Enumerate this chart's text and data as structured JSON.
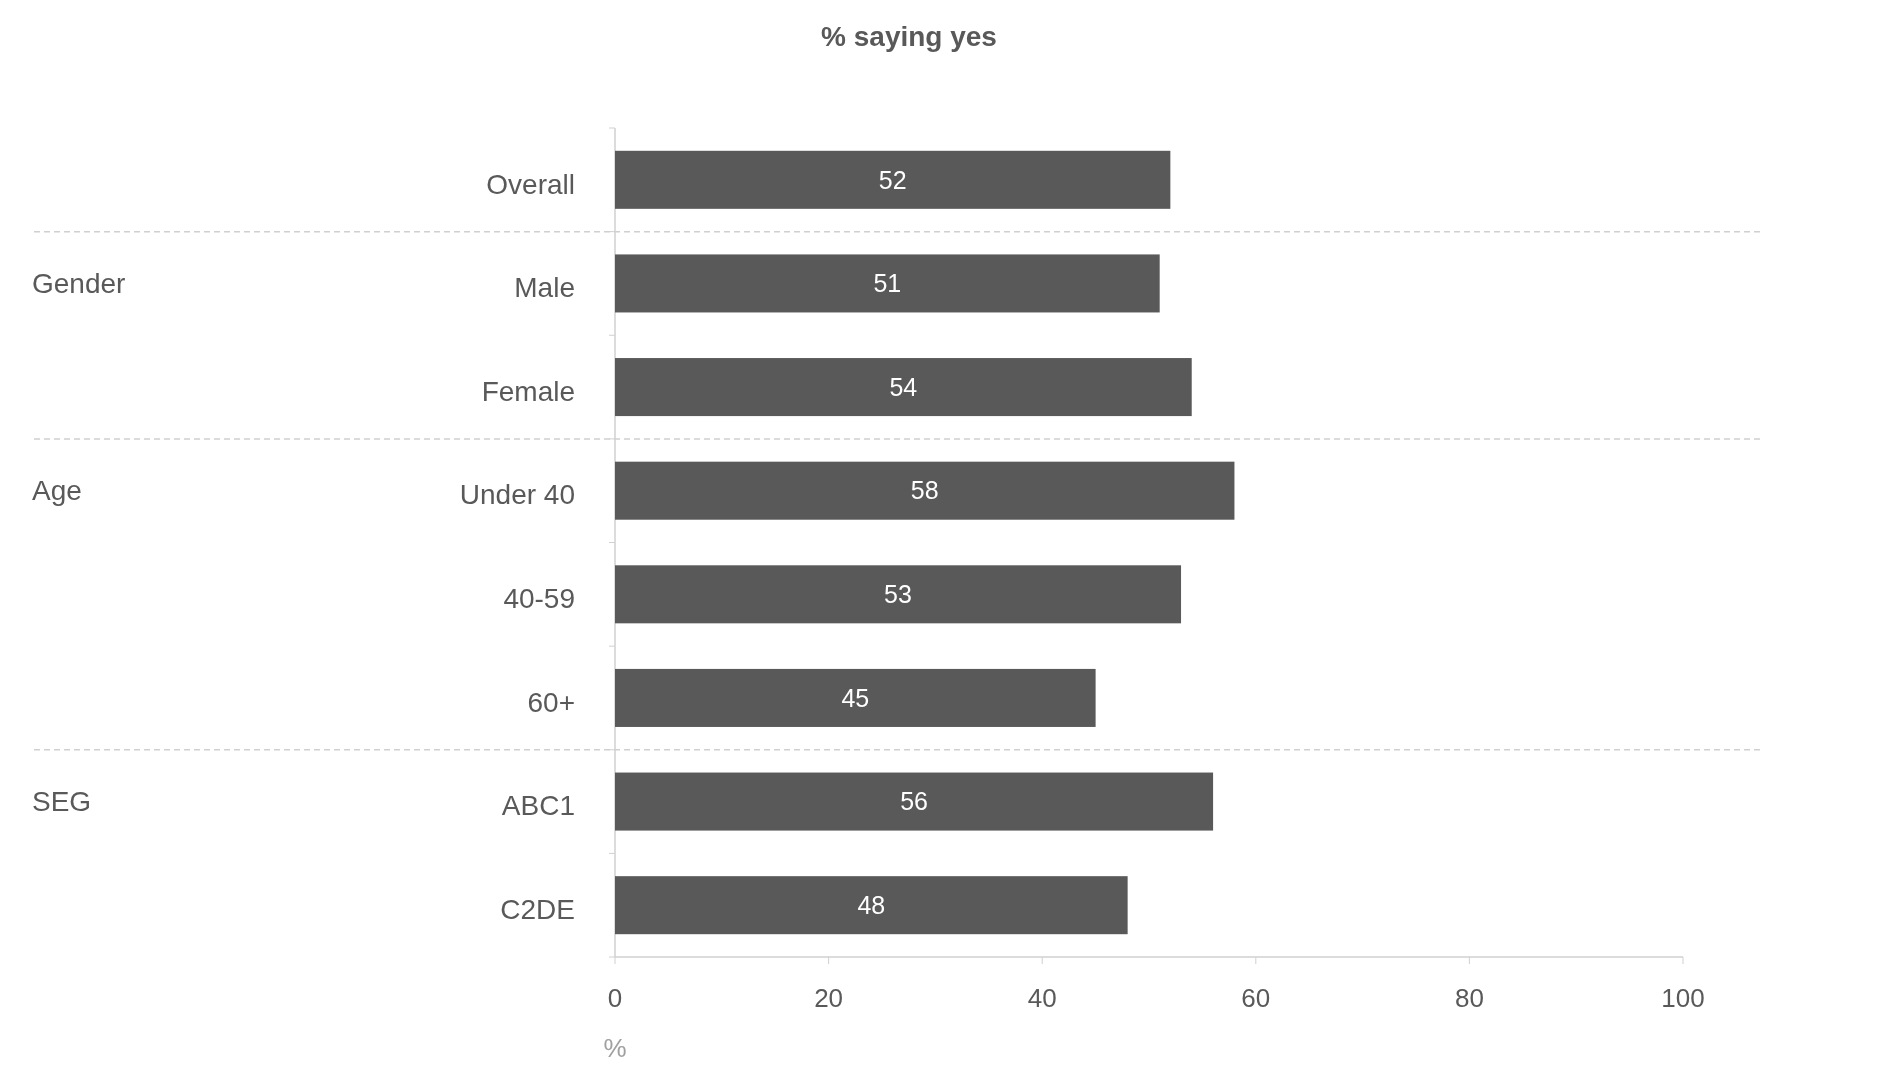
{
  "chart_data": {
    "type": "bar",
    "orientation": "horizontal",
    "title": "% saying yes",
    "xlabel": "%",
    "categories": [
      "Overall",
      "Male",
      "Female",
      "Under 40",
      "40-59",
      "60+",
      "ABC1",
      "C2DE"
    ],
    "values": [
      52,
      51,
      54,
      58,
      53,
      45,
      56,
      48
    ],
    "color": "#595959",
    "data_labels": true,
    "xlim": [
      0,
      100
    ],
    "xticks": [
      0,
      20,
      40,
      60,
      80,
      100
    ],
    "grid": false,
    "annotations": [
      "Gender",
      "Age",
      "SEG"
    ]
  }
}
